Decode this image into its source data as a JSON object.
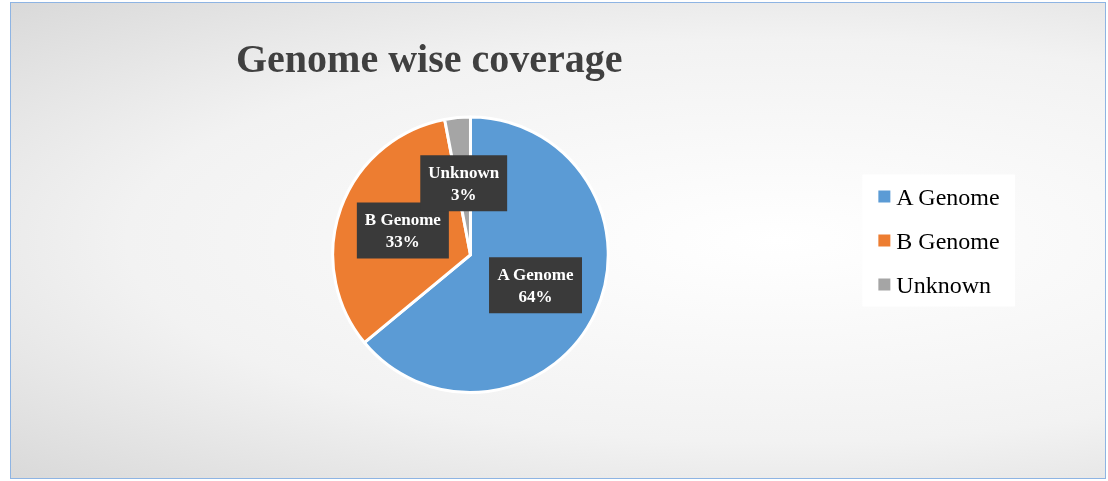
{
  "chart_data": {
    "type": "pie",
    "title": "Genome wise coverage",
    "categories": [
      "A Genome",
      "B Genome",
      "Unknown"
    ],
    "values": [
      64,
      33,
      3
    ],
    "colors": [
      "#5b9bd5",
      "#ed7d31",
      "#a5a5a5"
    ],
    "value_labels": [
      "64%",
      "33%",
      "3%"
    ],
    "legend": "right"
  }
}
